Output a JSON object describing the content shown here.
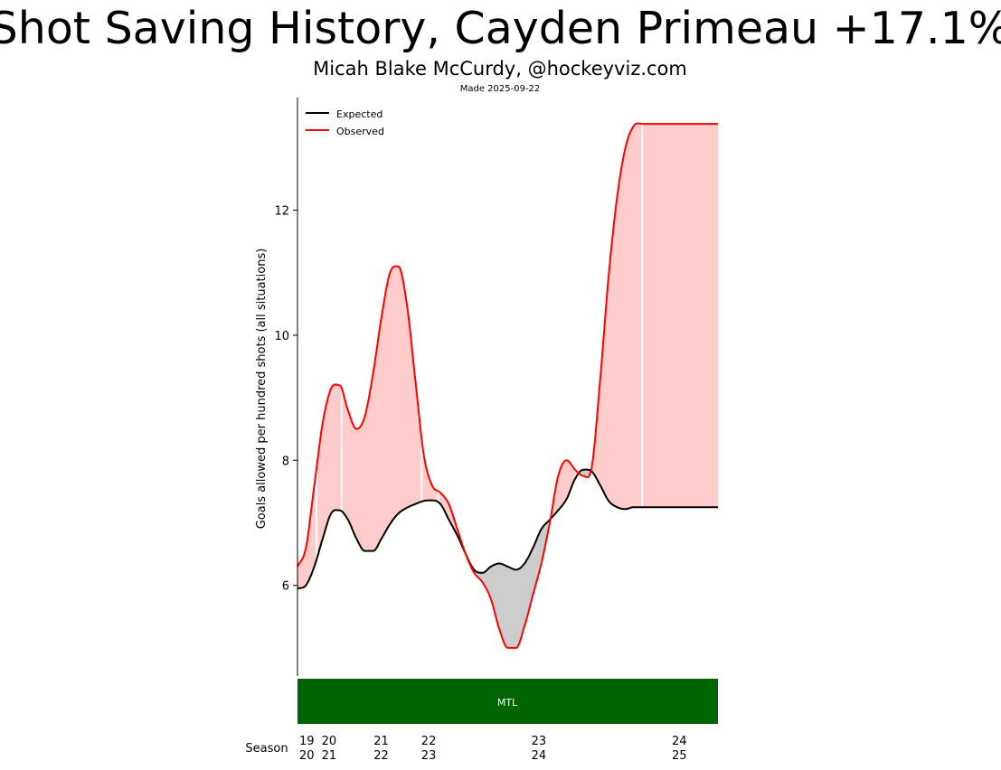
{
  "title": "Shot Saving History, Cayden Primeau +17.1%",
  "subtitle": "Micah Blake McCurdy, @hockeyviz.com",
  "made": "Made 2025-09-22",
  "ylabel": "Goals allowed per hundred shots (all situations)",
  "season_label": "Season",
  "team_band": {
    "label": "MTL",
    "color": "#006400"
  },
  "colors": {
    "expected": "#000000",
    "observed": "#ff0000",
    "worse_fill": "#ffcccc",
    "better_fill": "#cccccc"
  },
  "chart_data": {
    "type": "line",
    "xlim": [
      0,
      100
    ],
    "ylim": [
      4.55,
      13.8
    ],
    "yticks": [
      6,
      8,
      10,
      12
    ],
    "legend": "top-left",
    "series": [
      {
        "name": "Expected",
        "x": [
          0,
          2,
          4,
          6,
          8,
          10,
          12,
          14,
          16,
          18,
          20,
          22,
          24,
          26,
          28,
          30,
          32,
          34,
          36,
          38,
          40,
          42,
          44,
          46,
          48,
          50,
          52,
          54,
          56,
          58,
          60,
          62,
          64,
          66,
          68,
          70,
          72,
          74,
          76,
          78,
          80,
          82,
          84,
          86,
          88,
          90,
          92,
          94,
          96,
          98,
          100
        ],
        "values": [
          5.95,
          6.0,
          6.3,
          6.75,
          7.15,
          7.2,
          7.05,
          6.75,
          6.55,
          6.55,
          6.75,
          6.98,
          7.15,
          7.24,
          7.3,
          7.35,
          7.36,
          7.3,
          7.05,
          6.8,
          6.5,
          6.25,
          6.2,
          6.3,
          6.35,
          6.3,
          6.25,
          6.35,
          6.6,
          6.9,
          7.05,
          7.2,
          7.38,
          7.7,
          7.85,
          7.82,
          7.6,
          7.35,
          7.25,
          7.22,
          7.25,
          7.25,
          7.25,
          7.25,
          7.25,
          7.25,
          7.25,
          7.25,
          7.25,
          7.25,
          7.25
        ]
      },
      {
        "name": "Observed",
        "x": [
          0,
          2,
          4,
          6,
          8,
          10,
          12,
          14,
          16,
          18,
          20,
          22,
          24,
          26,
          28,
          30,
          32,
          34,
          36,
          38,
          40,
          42,
          44,
          46,
          48,
          50,
          52,
          54,
          56,
          58,
          60,
          62,
          64,
          66,
          68,
          70,
          72,
          74,
          76,
          78,
          80,
          82,
          84,
          86,
          88,
          90,
          92,
          94,
          96,
          98,
          100
        ],
        "values": [
          6.3,
          6.6,
          7.6,
          8.6,
          9.15,
          9.2,
          8.8,
          8.5,
          8.7,
          9.4,
          10.3,
          11.0,
          11.1,
          10.5,
          9.3,
          8.1,
          7.6,
          7.48,
          7.3,
          6.9,
          6.5,
          6.2,
          6.05,
          5.78,
          5.3,
          5.0,
          5.0,
          5.35,
          5.85,
          6.35,
          7.0,
          7.75,
          8.0,
          7.85,
          7.75,
          7.9,
          9.3,
          10.95,
          12.2,
          13.0,
          13.35,
          13.38,
          13.38,
          13.38,
          13.38,
          13.38,
          13.38,
          13.38,
          13.38,
          13.38,
          13.38
        ]
      }
    ],
    "season_ticks": [
      {
        "x": 2.2,
        "line1": "19",
        "line2": "20"
      },
      {
        "x": 7.5,
        "line1": "20",
        "line2": "21"
      },
      {
        "x": 19.9,
        "line1": "21",
        "line2": "22"
      },
      {
        "x": 31.2,
        "line1": "22",
        "line2": "23"
      },
      {
        "x": 57.4,
        "line1": "23",
        "line2": "24"
      },
      {
        "x": 90.8,
        "line1": "24",
        "line2": "25"
      }
    ],
    "season_dividers": [
      4.5,
      10.5,
      29.5,
      33.5,
      82.0
    ]
  }
}
